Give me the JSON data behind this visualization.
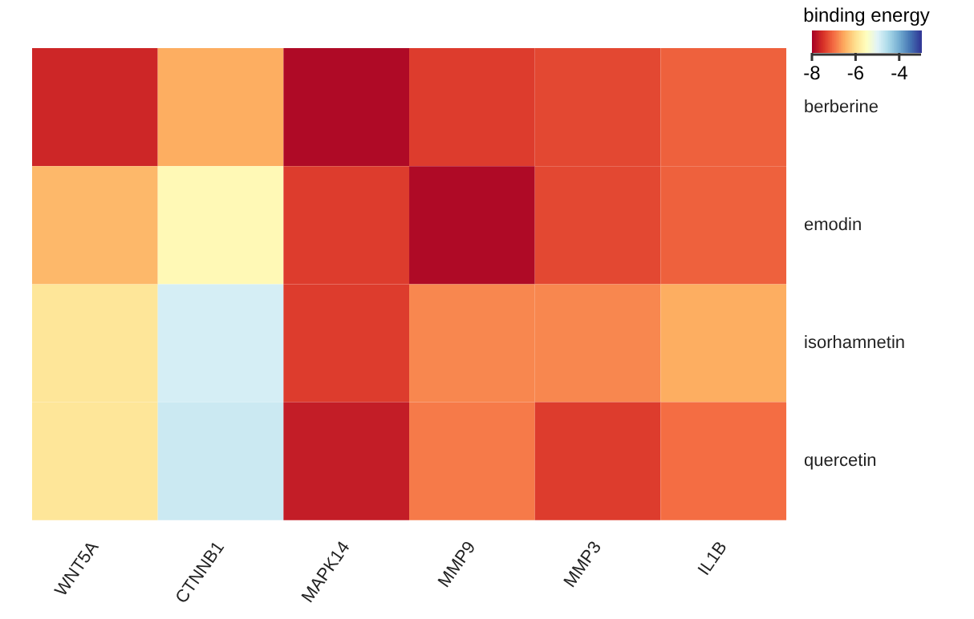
{
  "chart_data": {
    "type": "heatmap",
    "clabel": "binding energy",
    "categories": [
      "WNT5A",
      "CTNNB1",
      "MAPK14",
      "MMP9",
      "MMP3",
      "IL1B"
    ],
    "y_categories": [
      "berberine",
      "emodin",
      "isorhamnetin",
      "quercetin"
    ],
    "cells": [
      [
        -7.6,
        -6.5,
        -7.9,
        -7.4,
        -7.3,
        -7.1
      ],
      [
        -6.4,
        -5.6,
        -7.4,
        -7.9,
        -7.3,
        -7.1
      ],
      [
        -5.9,
        -4.9,
        -7.4,
        -6.8,
        -6.8,
        -6.5
      ],
      [
        -5.9,
        -4.8,
        -7.7,
        -6.9,
        -7.4,
        -7.0
      ]
    ],
    "clim": [
      -8,
      -3
    ],
    "cticks": [
      -8,
      -6,
      -4
    ]
  }
}
